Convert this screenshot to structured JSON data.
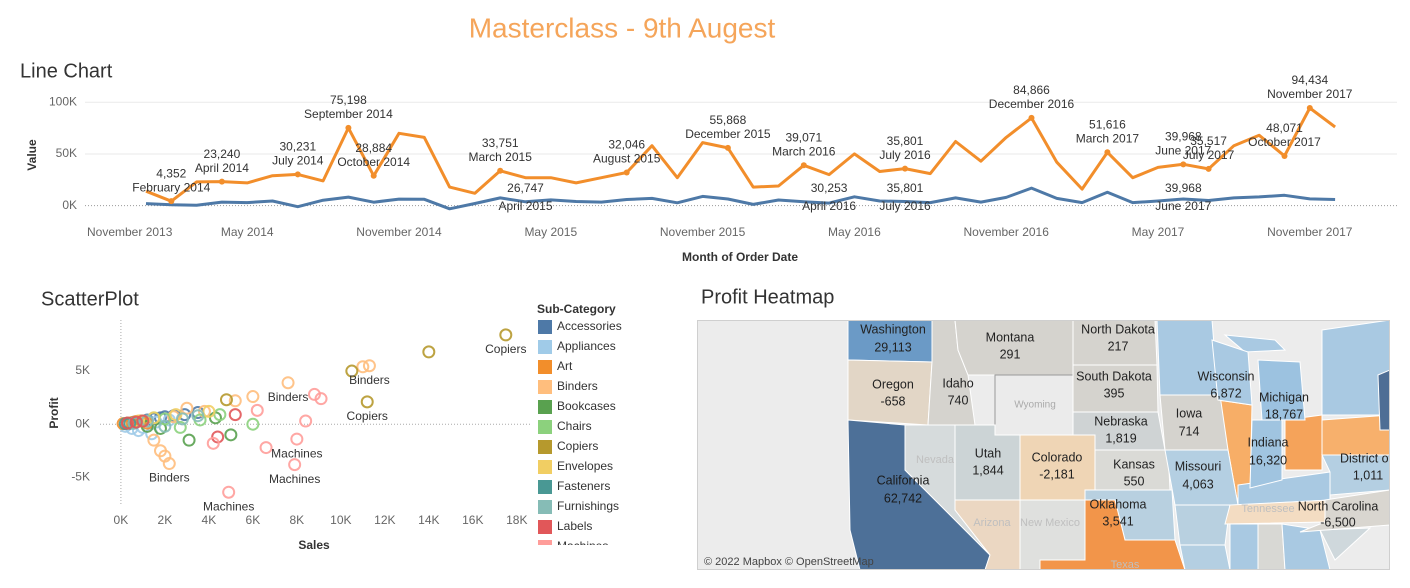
{
  "title": "Masterclass - 9th Augest",
  "chart_data": [
    {
      "type": "line",
      "title": "Line Chart",
      "x_label": "Month of Order Date",
      "y_label": "Value",
      "x": [
        "January 2014",
        "February 2014",
        "March 2014",
        "April 2014",
        "May 2014",
        "June 2014",
        "July 2014",
        "August 2014",
        "September 2014",
        "October 2014",
        "November 2014",
        "December 2014",
        "January 2015",
        "February 2015",
        "March 2015",
        "April 2015",
        "May 2015",
        "June 2015",
        "July 2015",
        "August 2015",
        "September 2015",
        "October 2015",
        "November 2015",
        "December 2015",
        "January 2016",
        "February 2016",
        "March 2016",
        "April 2016",
        "May 2016",
        "June 2016",
        "July 2016",
        "August 2016",
        "September 2016",
        "October 2016",
        "November 2016",
        "December 2016",
        "January 2017",
        "February 2017",
        "March 2017",
        "April 2017",
        "May 2017",
        "June 2017",
        "July 2017",
        "August 2017",
        "September 2017",
        "October 2017",
        "November 2017",
        "December 2017"
      ],
      "xticks": [
        "November 2013",
        "May 2014",
        "November 2014",
        "May 2015",
        "November 2015",
        "May 2016",
        "November 2016",
        "May 2017",
        "November 2017"
      ],
      "ylim": [
        -9000,
        106000
      ],
      "yticks": [
        {
          "value": 0,
          "label": "0K"
        },
        {
          "value": 50000,
          "label": "50K"
        },
        {
          "value": 100000,
          "label": "100K"
        }
      ],
      "grid": true,
      "series": [
        {
          "color": "#f28e2b",
          "values": [
            14000,
            4352,
            23000,
            23240,
            22000,
            29000,
            30231,
            24000,
            75198,
            28884,
            70000,
            66000,
            18000,
            12000,
            33751,
            27000,
            27000,
            22000,
            27000,
            32046,
            58000,
            27000,
            61000,
            55868,
            18000,
            19000,
            39071,
            30000,
            50000,
            33000,
            35801,
            31000,
            62000,
            43000,
            66000,
            84866,
            42000,
            16000,
            51616,
            27000,
            37000,
            39968,
            35517,
            58000,
            68000,
            48071,
            94434,
            76000
          ],
          "value_labels": [
            null,
            "4,352",
            null,
            "23,240",
            null,
            null,
            "30,231",
            null,
            "75,198",
            "28,884",
            null,
            null,
            null,
            null,
            "33,751",
            null,
            null,
            null,
            null,
            "32,046",
            null,
            null,
            null,
            "55,868",
            null,
            null,
            "39,071",
            null,
            null,
            null,
            "35,801",
            null,
            null,
            null,
            null,
            "84,866",
            null,
            null,
            "51,616",
            null,
            null,
            "39,968",
            "35,517",
            null,
            null,
            "48,071",
            "94,434",
            null
          ]
        },
        {
          "color": "#4e79a7",
          "values": [
            2000,
            900,
            500,
            3500,
            3000,
            4500,
            -1000,
            5300,
            8300,
            3400,
            6400,
            6200,
            -3000,
            2100,
            7500,
            3800,
            5600,
            4000,
            3500,
            6000,
            7000,
            2800,
            9000,
            6500,
            1200,
            5500,
            3800,
            2500,
            8600,
            4500,
            4000,
            3000,
            7500,
            3500,
            8000,
            17000,
            7000,
            3000,
            13000,
            3000,
            4500,
            6500,
            5000,
            7500,
            8500,
            10000,
            6600,
            6000
          ]
        }
      ],
      "annotations": [
        {
          "text": "26,747",
          "date": "April 2015"
        },
        {
          "text": "30,253",
          "date": "April 2016"
        },
        {
          "text": "35,801",
          "date": "July 2016"
        },
        {
          "text": "39,968",
          "date": "June 2017"
        }
      ]
    },
    {
      "type": "scatter",
      "title": "ScatterPlot",
      "x_label": "Sales",
      "y_label": "Profit",
      "legend_title": "Sub-Category",
      "xlim": [
        -950,
        18600
      ],
      "ylim": [
        -7600,
        9800
      ],
      "xticks": [
        {
          "value": 0,
          "label": "0K"
        },
        {
          "value": 2000,
          "label": "2K"
        },
        {
          "value": 4000,
          "label": "4K"
        },
        {
          "value": 6000,
          "label": "6K"
        },
        {
          "value": 8000,
          "label": "8K"
        },
        {
          "value": 10000,
          "label": "10K"
        },
        {
          "value": 12000,
          "label": "12K"
        },
        {
          "value": 14000,
          "label": "14K"
        },
        {
          "value": 16000,
          "label": "16K"
        },
        {
          "value": 18000,
          "label": "18K"
        }
      ],
      "yticks": [
        {
          "value": -5000,
          "label": "-5K"
        },
        {
          "value": 0,
          "label": "0K"
        },
        {
          "value": 5000,
          "label": "5K"
        }
      ],
      "series": [
        {
          "name": "Accessories",
          "color": "#4e79a7",
          "x": [
            300,
            600,
            900,
            1200,
            1500,
            1800,
            2000,
            2400,
            2900,
            3500
          ],
          "y": [
            100,
            200,
            300,
            400,
            500,
            600,
            700,
            800,
            900,
            1100
          ]
        },
        {
          "name": "Appliances",
          "color": "#a0cbe8",
          "x": [
            200,
            500,
            800,
            1000,
            1400,
            1600,
            2200
          ],
          "y": [
            -200,
            -400,
            -600,
            -300,
            -900,
            200,
            400
          ]
        },
        {
          "name": "Art",
          "color": "#f28e2b",
          "x": [
            100,
            300,
            500,
            700,
            900,
            1200
          ],
          "y": [
            50,
            100,
            150,
            250,
            300,
            100
          ]
        },
        {
          "name": "Binders",
          "color": "#ffbe7d",
          "x": [
            1500,
            1800,
            2000,
            2200,
            3800,
            5200,
            6000,
            7600,
            11000,
            11300,
            2400,
            3000
          ],
          "y": [
            -1500,
            -2500,
            -3000,
            -3700,
            1200,
            2200,
            2600,
            3900,
            5400,
            5500,
            700,
            1500
          ],
          "labels": [
            null,
            null,
            null,
            "Binders",
            null,
            null,
            null,
            "Binders",
            null,
            "Binders",
            null,
            null
          ]
        },
        {
          "name": "Bookcases",
          "color": "#59a14f",
          "x": [
            1200,
            1800,
            3100,
            4300,
            5000
          ],
          "y": [
            -200,
            -400,
            -1500,
            600,
            -1000
          ]
        },
        {
          "name": "Chairs",
          "color": "#8cd17d",
          "x": [
            1000,
            1500,
            2000,
            2700,
            3600,
            4500,
            6000
          ],
          "y": [
            300,
            600,
            500,
            -300,
            400,
            900,
            0
          ]
        },
        {
          "name": "Copiers",
          "color": "#b6992d",
          "x": [
            4800,
            10500,
            11200,
            14000,
            17500
          ],
          "y": [
            2300,
            5000,
            2100,
            6800,
            8400
          ],
          "labels": [
            null,
            null,
            "Copiers",
            null,
            "Copiers"
          ]
        },
        {
          "name": "Envelopes",
          "color": "#f1ce63",
          "x": [
            800,
            1500,
            2500,
            4000
          ],
          "y": [
            300,
            600,
            900,
            1200
          ]
        },
        {
          "name": "Fasteners",
          "color": "#499894",
          "x": [
            200,
            400,
            600
          ],
          "y": [
            50,
            80,
            100
          ]
        },
        {
          "name": "Furnishings",
          "color": "#86bcb6",
          "x": [
            600,
            1200,
            2000,
            2800,
            3500
          ],
          "y": [
            100,
            300,
            -200,
            500,
            800
          ]
        },
        {
          "name": "Labels",
          "color": "#e15759",
          "x": [
            300,
            700,
            1000,
            4400,
            5200
          ],
          "y": [
            100,
            200,
            300,
            -1200,
            900
          ]
        },
        {
          "name": "Machines",
          "color": "#ff9d9a",
          "x": [
            4900,
            7900,
            8000,
            6600,
            8400,
            8800,
            9100,
            4200,
            6200
          ],
          "y": [
            -6400,
            -3800,
            -1400,
            -2200,
            300,
            2800,
            2400,
            -1800,
            1300
          ],
          "labels": [
            "Machines",
            "Machines",
            "Machines",
            null,
            null,
            null,
            null,
            null,
            null
          ]
        }
      ]
    }
  ],
  "map": {
    "title": "Profit Heatmap",
    "attribution": "© 2022 Mapbox © OpenStreetMap",
    "states": [
      {
        "name": "Washington",
        "value": 29113,
        "value_label": "29,113",
        "color": "#6b9ac6"
      },
      {
        "name": "Montana",
        "value": 291,
        "color": "#d5d3ce"
      },
      {
        "name": "North Dakota",
        "value": 217,
        "color": "#d5d3ce"
      },
      {
        "name": "Oregon",
        "value": -658,
        "color": "#e2d6c6"
      },
      {
        "name": "Idaho",
        "value": 740,
        "color": "#d5d3ce"
      },
      {
        "name": "South Dakota",
        "value": 395,
        "color": "#d5d3ce"
      },
      {
        "name": "Wyoming",
        "color": "#ebebeb"
      },
      {
        "name": "Wisconsin",
        "value": 6872,
        "value_label": "6,872",
        "color": "#a9c9e2"
      },
      {
        "name": "Michigan",
        "value": 18767,
        "value_label": "18,767",
        "color": "#9cc2e0"
      },
      {
        "name": "Nebraska",
        "value": 1819,
        "value_label": "1,819",
        "color": "#cfd3d4"
      },
      {
        "name": "Iowa",
        "value": 714,
        "color": "#d5d3ce"
      },
      {
        "name": "Indiana",
        "value": 16320,
        "value_label": "16,320",
        "color": "#a0c4e0"
      },
      {
        "name": "Utah",
        "value": 1844,
        "value_label": "1,844",
        "color": "#ccd4d6"
      },
      {
        "name": "Colorado",
        "value": -2181,
        "value_label": "-2,181",
        "color": "#efd5b5"
      },
      {
        "name": "Kansas",
        "value": 550,
        "color": "#dadad6"
      },
      {
        "name": "Missouri",
        "value": 4063,
        "value_label": "4,063",
        "color": "#b4cfe2"
      },
      {
        "name": "District of Col",
        "value": 1011,
        "value_label": "1,011",
        "color": "#b4cfe2"
      },
      {
        "name": "California",
        "value": 62742,
        "value_label": "62,742",
        "color": "#4d7098"
      },
      {
        "name": "Oklahoma",
        "value": 3541,
        "value_label": "3,541",
        "color": "#b8d0e0"
      },
      {
        "name": "North Carolina",
        "value": -6500,
        "value_label": "-6,500",
        "color": "#d9d6d0"
      },
      {
        "name": "Nevada",
        "color": "#d6dbdc"
      },
      {
        "name": "Arizona",
        "color": "#ebd7c2"
      },
      {
        "name": "New Mexico",
        "color": "#dfe0de"
      },
      {
        "name": "Texas",
        "color": "#f2954a"
      },
      {
        "name": "Tennessee",
        "color": "#f3dcc2"
      }
    ]
  }
}
